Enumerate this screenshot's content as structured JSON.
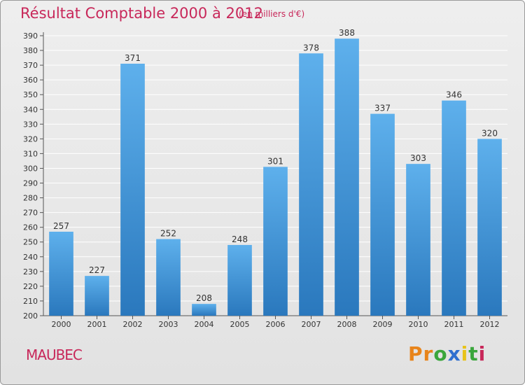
{
  "header": {
    "title": "Résultat Comptable 2000 à 2012",
    "subtitle": "(en milliers d'€)"
  },
  "footer": {
    "place": "MAUBEC",
    "logo_letters": [
      "P",
      "r",
      "o",
      "x",
      "i",
      "t",
      "i"
    ],
    "logo_colors": [
      "#e8841a",
      "#e8841a",
      "#3aa63c",
      "#2f6fcf",
      "#e8c31a",
      "#3aa63c",
      "#c8285a"
    ]
  },
  "colors": {
    "bar_top": "#5eb0ec",
    "bar_bottom": "#2a78bd",
    "accent": "#c8285a",
    "grid": "#ffffff",
    "text": "#333333"
  },
  "chart_data": {
    "type": "bar",
    "title": "Résultat Comptable 2000 à 2012",
    "ylabel": "en milliers d'€",
    "xlabel": "",
    "categories": [
      "2000",
      "2001",
      "2002",
      "2003",
      "2004",
      "2005",
      "2006",
      "2007",
      "2008",
      "2009",
      "2010",
      "2011",
      "2012"
    ],
    "values": [
      257,
      227,
      371,
      252,
      208,
      248,
      301,
      378,
      388,
      337,
      303,
      346,
      320
    ],
    "ylim": [
      200,
      390
    ],
    "ytick_step": 10,
    "grid": true
  }
}
